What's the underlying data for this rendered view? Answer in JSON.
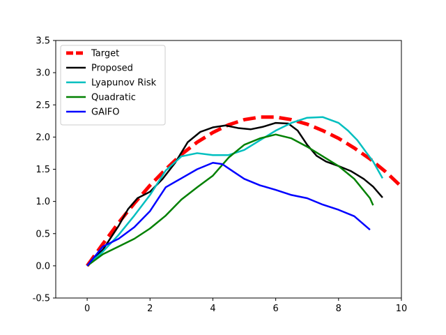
{
  "chart_data": {
    "type": "line",
    "title": "",
    "xlabel": "",
    "ylabel": "",
    "xlim": [
      -1,
      10
    ],
    "ylim": [
      -0.5,
      3.5
    ],
    "xticks": [
      0,
      2,
      4,
      6,
      8,
      10
    ],
    "yticks": [
      -0.5,
      0.0,
      0.5,
      1.0,
      1.5,
      2.0,
      2.5,
      3.0,
      3.5
    ],
    "grid": false,
    "legend_position": "top-left",
    "series": [
      {
        "name": "Target",
        "color": "#ff0000",
        "style": "dashed",
        "width": 5,
        "x": [
          0,
          0.5,
          1,
          1.5,
          2,
          2.5,
          3,
          3.5,
          4,
          4.5,
          5,
          5.5,
          6,
          6.5,
          7,
          7.5,
          8,
          8.5,
          9,
          9.5,
          10
        ],
        "y": [
          0.0,
          0.34,
          0.67,
          0.97,
          1.25,
          1.5,
          1.73,
          1.92,
          2.07,
          2.19,
          2.27,
          2.31,
          2.31,
          2.27,
          2.2,
          2.1,
          1.98,
          1.83,
          1.66,
          1.46,
          1.23
        ]
      },
      {
        "name": "Proposed",
        "color": "#000000",
        "style": "solid",
        "width": 2.5,
        "x": [
          0,
          0.5,
          1,
          1.3,
          1.6,
          2,
          2.4,
          2.8,
          3.2,
          3.6,
          4,
          4.4,
          4.8,
          5.2,
          5.6,
          6,
          6.4,
          6.7,
          7,
          7.3,
          7.6,
          8,
          8.4,
          8.8,
          9.1,
          9.4
        ],
        "y": [
          0.0,
          0.25,
          0.62,
          0.88,
          1.05,
          1.15,
          1.35,
          1.6,
          1.92,
          2.08,
          2.15,
          2.18,
          2.14,
          2.12,
          2.16,
          2.22,
          2.21,
          2.1,
          1.88,
          1.71,
          1.62,
          1.55,
          1.47,
          1.35,
          1.23,
          1.06
        ]
      },
      {
        "name": "Lyapunov Risk",
        "color": "#00bfbf",
        "style": "solid",
        "width": 2.5,
        "x": [
          0,
          0.5,
          1,
          1.5,
          2,
          2.5,
          3,
          3.5,
          4,
          4.5,
          5,
          5.5,
          6,
          6.5,
          7,
          7.5,
          8,
          8.3,
          8.6,
          8.9,
          9.1,
          9.4
        ],
        "y": [
          0.0,
          0.22,
          0.48,
          0.78,
          1.1,
          1.48,
          1.7,
          1.75,
          1.72,
          1.72,
          1.8,
          1.95,
          2.1,
          2.22,
          2.3,
          2.31,
          2.22,
          2.1,
          1.95,
          1.75,
          1.62,
          1.36
        ]
      },
      {
        "name": "Quadratic",
        "color": "#008000",
        "style": "solid",
        "width": 2.5,
        "x": [
          0,
          0.5,
          1,
          1.5,
          2,
          2.5,
          3,
          3.5,
          4,
          4.5,
          5,
          5.5,
          6,
          6.5,
          7,
          7.5,
          8,
          8.5,
          9,
          9.1
        ],
        "y": [
          0.0,
          0.18,
          0.3,
          0.42,
          0.58,
          0.78,
          1.03,
          1.22,
          1.4,
          1.68,
          1.88,
          1.98,
          2.04,
          1.98,
          1.85,
          1.7,
          1.55,
          1.35,
          1.05,
          0.94
        ]
      },
      {
        "name": "GAIFO",
        "color": "#0000ff",
        "style": "solid",
        "width": 2.5,
        "x": [
          0,
          0.5,
          1,
          1.5,
          2,
          2.5,
          3,
          3.5,
          4,
          4.3,
          4.6,
          5,
          5.5,
          6,
          6.5,
          7,
          7.5,
          8,
          8.5,
          9
        ],
        "y": [
          0.0,
          0.3,
          0.42,
          0.6,
          0.85,
          1.22,
          1.36,
          1.5,
          1.6,
          1.58,
          1.48,
          1.35,
          1.25,
          1.18,
          1.1,
          1.05,
          0.95,
          0.87,
          0.77,
          0.56
        ]
      }
    ]
  }
}
